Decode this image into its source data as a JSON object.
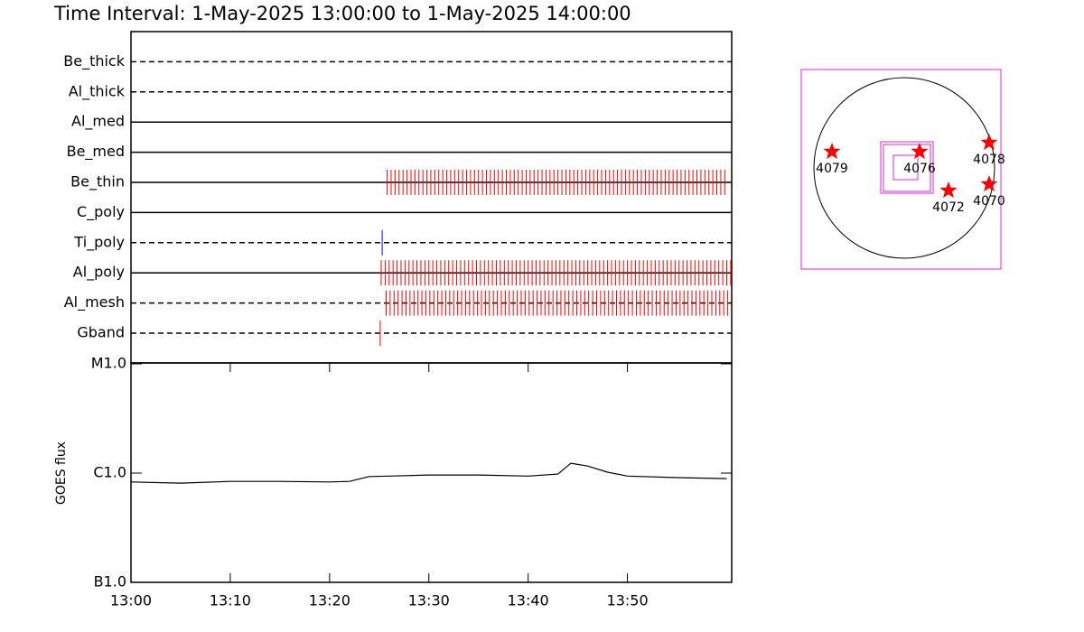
{
  "title": "Time Interval:  1-May-2025 13:00:00 to  1-May-2025 14:00:00",
  "chart_data": [
    {
      "type": "timeline",
      "categories": [
        "Be_thick",
        "Al_thick",
        "Al_med",
        "Be_med",
        "Be_thin",
        "C_poly",
        "Ti_poly",
        "Al_poly",
        "Al_mesh",
        "Gband"
      ],
      "line_styles": [
        "dashed",
        "dashed",
        "solid",
        "solid",
        "solid",
        "solid",
        "dashed",
        "solid",
        "dashed",
        "dashed"
      ],
      "colors": [
        "#ff0000",
        "#ff0000",
        "#ff0000",
        "#ff0000",
        "#ff0000",
        "#ff0000",
        "#0000ff",
        "#ff0000",
        "#ff0000",
        "#ff0000"
      ],
      "xlim": [
        0,
        60.5
      ],
      "times": [
        [],
        [],
        [],
        [],
        [
          25.8,
          26.2,
          26.6,
          27,
          27.4,
          27.8,
          28.2,
          28.6,
          29,
          29.4,
          29.8,
          30.2,
          30.6,
          31,
          31.4,
          31.8,
          32.2,
          32.6,
          33,
          33.4,
          33.8,
          34.2,
          34.6,
          35,
          35.4,
          35.8,
          36.2,
          36.6,
          37,
          37.4,
          37.8,
          38.2,
          38.6,
          39,
          39.4,
          39.8,
          40.2,
          40.6,
          41,
          41.4,
          41.8,
          42.2,
          42.6,
          43,
          43.4,
          43.8,
          44.2,
          44.6,
          45,
          45.4,
          45.8,
          46.2,
          46.6,
          47,
          47.4,
          47.8,
          48.2,
          48.6,
          49,
          49.4,
          49.8,
          50.2,
          50.6,
          51,
          51.4,
          51.8,
          52.2,
          52.6,
          53,
          53.4,
          53.8,
          54.2,
          54.6,
          55,
          55.4,
          55.8,
          56.2,
          56.6,
          57,
          57.4,
          57.8,
          58.2,
          58.6,
          59,
          59.4,
          59.8
        ],
        [],
        [
          25.3
        ],
        [
          25.2,
          25.6,
          26,
          26.4,
          26.8,
          27.2,
          27.6,
          28,
          28.4,
          28.8,
          29.2,
          29.6,
          30,
          30.4,
          30.8,
          31.2,
          31.6,
          32,
          32.4,
          32.8,
          33.2,
          33.6,
          34,
          34.4,
          34.8,
          35.2,
          35.6,
          36,
          36.4,
          36.8,
          37.2,
          37.6,
          38,
          38.4,
          38.8,
          39.2,
          39.6,
          40,
          40.4,
          40.8,
          41.2,
          41.6,
          42,
          42.4,
          42.8,
          43.2,
          43.6,
          44,
          44.4,
          44.8,
          45.2,
          45.6,
          46,
          46.4,
          46.8,
          47.2,
          47.6,
          48,
          48.4,
          48.8,
          49.2,
          49.6,
          50,
          50.4,
          50.8,
          51.2,
          51.6,
          52,
          52.4,
          52.8,
          53.2,
          53.6,
          54,
          54.4,
          54.8,
          55.2,
          55.6,
          56,
          56.4,
          56.8,
          57.2,
          57.6,
          58,
          58.4,
          58.8,
          59.2,
          59.6,
          60,
          60.4
        ],
        [
          25.7,
          26.1,
          26.5,
          26.9,
          27.3,
          27.7,
          28.1,
          28.5,
          28.9,
          29.3,
          29.7,
          30.1,
          30.5,
          30.9,
          31.3,
          31.7,
          32.1,
          32.5,
          32.9,
          33.3,
          33.7,
          34.1,
          34.5,
          34.9,
          35.3,
          35.7,
          36.1,
          36.5,
          36.9,
          37.3,
          37.7,
          38.1,
          38.5,
          38.9,
          39.3,
          39.7,
          40.1,
          40.5,
          40.9,
          41.3,
          41.7,
          42.1,
          42.5,
          42.9,
          43.3,
          43.7,
          44.1,
          44.5,
          44.9,
          45.3,
          45.7,
          46.1,
          46.5,
          46.9,
          47.3,
          47.7,
          48.1,
          48.5,
          48.9,
          49.3,
          49.7,
          50.1,
          50.5,
          50.9,
          51.3,
          51.7,
          52.1,
          52.5,
          52.9,
          53.3,
          53.7,
          54.1,
          54.5,
          54.9,
          55.3,
          55.7,
          56.1,
          56.5,
          56.9,
          57.3,
          57.7,
          58.1,
          58.5,
          58.9,
          59.3,
          59.7,
          60.1
        ],
        [
          25.1
        ]
      ]
    },
    {
      "type": "line",
      "ylabel": "GOES flux",
      "x": [
        0,
        5,
        10,
        15,
        20,
        22,
        24,
        26,
        30,
        35,
        40,
        43,
        44.3,
        46,
        48,
        50,
        55,
        60
      ],
      "values": [
        8.3e-07,
        8.1e-07,
        8.4e-07,
        8.4e-07,
        8.3e-07,
        8.4e-07,
        9.3e-07,
        9.4e-07,
        9.6e-07,
        9.6e-07,
        9.4e-07,
        9.8e-07,
        1.23e-06,
        1.16e-06,
        1.02e-06,
        9.4e-07,
        9.1e-07,
        8.9e-07
      ],
      "color": "#000000",
      "log_scale": true,
      "xlim": [
        0,
        60.5
      ],
      "xticks": [
        {
          "value": 0,
          "label": "13:00"
        },
        {
          "value": 10,
          "label": "13:10"
        },
        {
          "value": 20,
          "label": "13:20"
        },
        {
          "value": 30,
          "label": "13:30"
        },
        {
          "value": 40,
          "label": "13:40"
        },
        {
          "value": 50,
          "label": "13:50"
        }
      ],
      "ylim": [
        1e-07,
        1e-05
      ],
      "yticks": [
        {
          "value": 1e-07,
          "label": "B1.0"
        },
        {
          "value": 1e-06,
          "label": "C1.0"
        },
        {
          "value": 1e-05,
          "label": "M1.0"
        }
      ]
    }
  ],
  "map": {
    "regions": [
      "4079",
      "4076",
      "4078",
      "4072",
      "4070"
    ]
  }
}
